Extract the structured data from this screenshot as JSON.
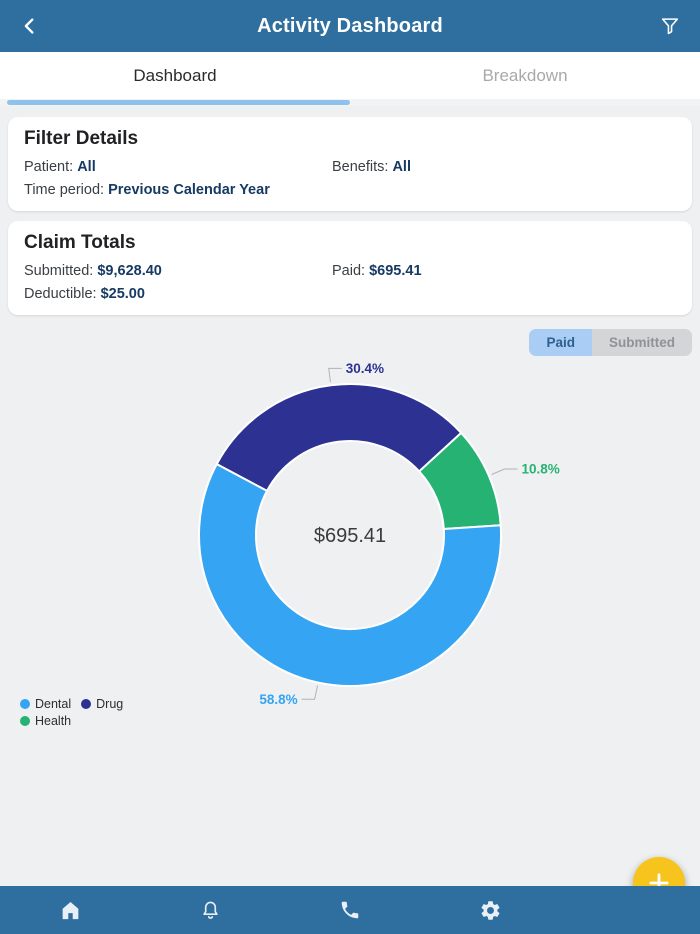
{
  "header": {
    "title": "Activity Dashboard"
  },
  "tabs": [
    {
      "label": "Dashboard",
      "active": true
    },
    {
      "label": "Breakdown",
      "active": false
    }
  ],
  "filter_card": {
    "title": "Filter Details",
    "fields": [
      {
        "label": "Patient:",
        "value": "All"
      },
      {
        "label": "Benefits:",
        "value": "All"
      },
      {
        "label": "Time period:",
        "value": "Previous Calendar Year"
      }
    ]
  },
  "totals_card": {
    "title": "Claim Totals",
    "fields": [
      {
        "label": "Submitted:",
        "value": "$9,628.40"
      },
      {
        "label": "Paid:",
        "value": "$695.41"
      },
      {
        "label": "Deductible:",
        "value": "$25.00"
      }
    ]
  },
  "segmented": {
    "options": [
      {
        "label": "Paid",
        "selected": true
      },
      {
        "label": "Submitted",
        "selected": false
      }
    ]
  },
  "chart_data": {
    "type": "pie",
    "donut": true,
    "center_label": "$695.41",
    "slices": [
      {
        "name": "Dental",
        "percent": 58.8,
        "color": "#35a4f3"
      },
      {
        "name": "Drug",
        "percent": 30.4,
        "color": "#2c3192"
      },
      {
        "name": "Health",
        "percent": 10.8,
        "color": "#25b273"
      }
    ],
    "draw_order": [
      "Drug",
      "Health",
      "Dental"
    ],
    "start_angle_deg": -62,
    "legend_position": "bottom-left",
    "label_format": "percent"
  },
  "colors": {
    "bar_blue": "#2f6f9f",
    "tab_indicator": "#8fc1ef",
    "segment_selected_bg": "#a9cdf4",
    "fab_yellow": "#f6c41d",
    "leader_line": "#b3b3b3"
  },
  "icons": {
    "top_left": "chevron-left",
    "top_right": "funnel",
    "fab": "plus",
    "bottom_nav": [
      "home",
      "bell",
      "phone",
      "gear"
    ]
  }
}
